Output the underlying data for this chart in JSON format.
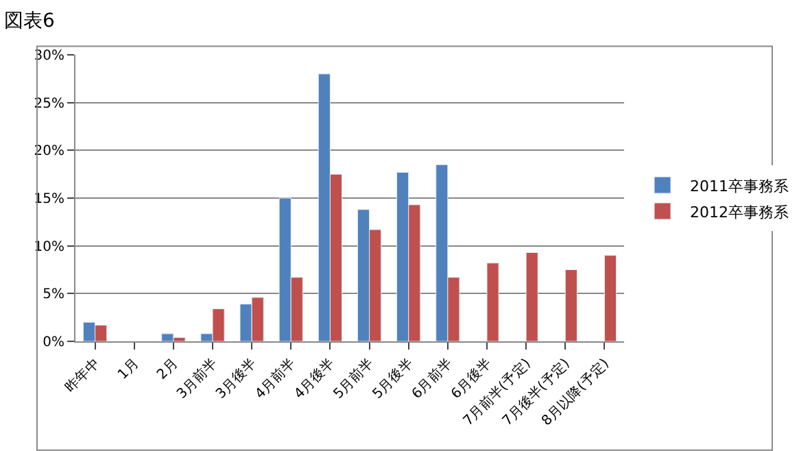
{
  "chart_data": {
    "type": "bar",
    "title": "図表6",
    "categories": [
      "昨年中",
      "1月",
      "2月",
      "3月前半",
      "3月後半",
      "4月前半",
      "4月後半",
      "5月前半",
      "5月後半",
      "6月前半",
      "6月後半",
      "7月前半(予定)",
      "7月後半(予定)",
      "8月以降(予定)"
    ],
    "series": [
      {
        "name": "2011卒事務系",
        "color": "#4f81bd",
        "values": [
          2.0,
          null,
          0.8,
          0.8,
          3.9,
          15.0,
          28.0,
          13.8,
          17.7,
          18.5,
          null,
          null,
          null,
          null
        ]
      },
      {
        "name": "2012卒事務系",
        "color": "#c0504d",
        "values": [
          1.7,
          null,
          0.4,
          3.4,
          4.6,
          6.7,
          17.5,
          11.7,
          14.3,
          6.7,
          8.2,
          9.3,
          7.5,
          9.0
        ]
      }
    ],
    "ylim": [
      0,
      30
    ],
    "yticks": [
      {
        "value": 0,
        "label": "0%"
      },
      {
        "value": 5,
        "label": "5%"
      },
      {
        "value": 10,
        "label": "10%"
      },
      {
        "value": 15,
        "label": "15%"
      },
      {
        "value": 20,
        "label": "20%"
      },
      {
        "value": 25,
        "label": "25%"
      },
      {
        "value": 30,
        "label": "30%"
      }
    ],
    "grid": "y",
    "legend": "right"
  }
}
